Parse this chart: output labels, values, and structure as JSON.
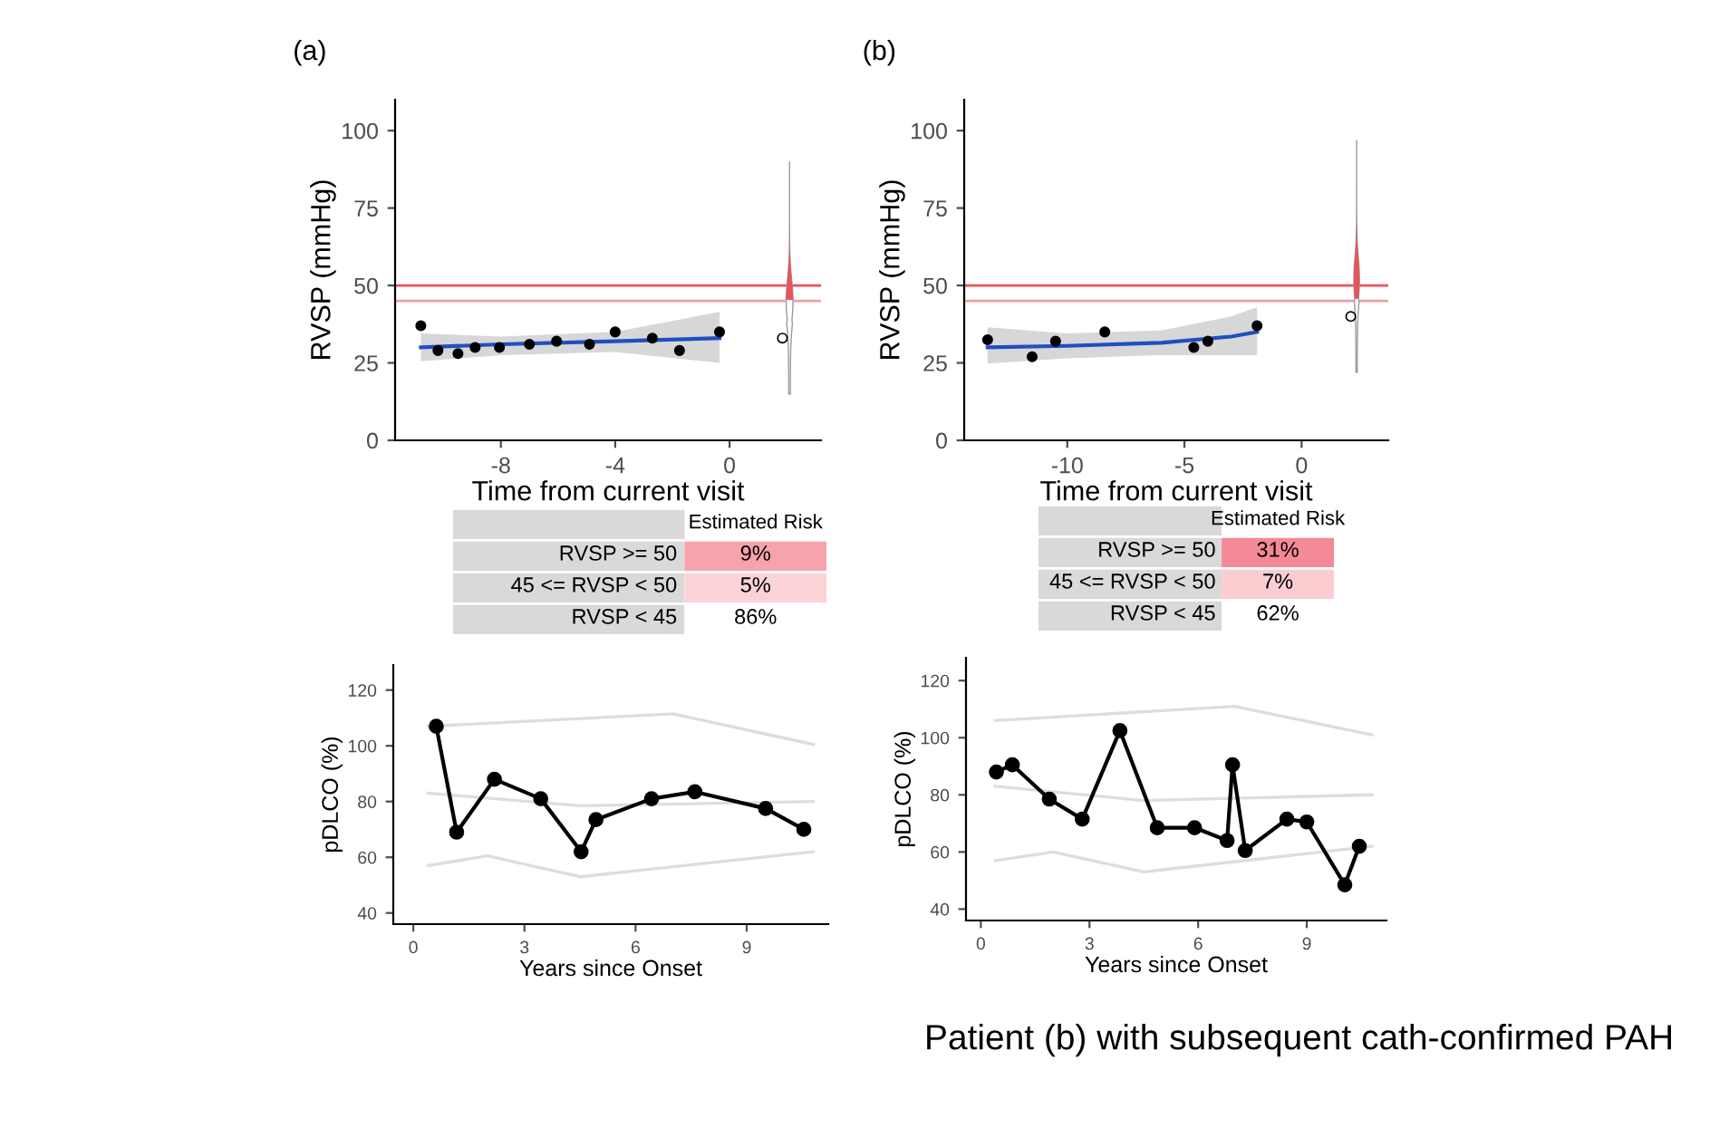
{
  "chart_data": [
    {
      "type": "scatter",
      "title": "(a)",
      "xlabel": "Time from current visit",
      "ylabel": "RVSP (mmHg)",
      "xlim": [
        -11.7,
        3.2
      ],
      "ylim": [
        0,
        110
      ],
      "xticks": [
        -8,
        -4,
        0
      ],
      "yticks": [
        0,
        25,
        50,
        75,
        100
      ],
      "grid": false,
      "legend": false,
      "series": [
        {
          "type": "line",
          "color": "#1f4fbf",
          "x": [
            -10.8,
            -8,
            -4,
            -0.35
          ],
          "values": [
            30,
            31,
            32,
            33
          ],
          "lower": [
            25.5,
            27.5,
            28.5,
            25
          ],
          "upper": [
            34.5,
            33.5,
            35,
            41.5
          ]
        },
        {
          "type": "scatter",
          "marker": "circle",
          "color": "#000000",
          "x": [
            -10.8,
            -10.2,
            -9.5,
            -8.9,
            -8.05,
            -7.0,
            -6.05,
            -4.9,
            -4.0,
            -2.7,
            -1.75,
            -0.35
          ],
          "values": [
            37,
            29,
            28,
            30,
            30,
            31,
            32,
            31,
            35,
            33,
            29,
            35
          ]
        },
        {
          "type": "scatter",
          "marker": "circle",
          "color": "#ffffff",
          "x": [
            1.85
          ],
          "values": [
            33
          ]
        }
      ],
      "ref_lines": [
        {
          "axis": "y",
          "value": 50,
          "color": "#e8535b"
        },
        {
          "axis": "y",
          "value": 45,
          "color": "#f2a0a4"
        }
      ]
    },
    {
      "type": "scatter",
      "title": "(b)",
      "xlabel": "Time from current visit",
      "ylabel": "RVSP (mmHg)",
      "xlim": [
        -14.4,
        3.7
      ],
      "ylim": [
        0,
        110
      ],
      "xticks": [
        -10,
        -5,
        0
      ],
      "yticks": [
        0,
        25,
        50,
        75,
        100
      ],
      "grid": false,
      "legend": false,
      "series": [
        {
          "type": "line",
          "color": "#1f4fbf",
          "x": [
            -13.4,
            -10,
            -6,
            -3,
            -1.9
          ],
          "values": [
            30,
            30.5,
            31.5,
            33.5,
            35
          ],
          "lower": [
            24.8,
            26.5,
            27.5,
            27.5,
            27.5
          ],
          "upper": [
            36.5,
            34.5,
            35.5,
            40,
            43
          ]
        },
        {
          "type": "scatter",
          "marker": "circle",
          "color": "#000000",
          "x": [
            -13.4,
            -11.5,
            -10.5,
            -8.4,
            -4.6,
            -4.0,
            -1.9
          ],
          "values": [
            32.5,
            27,
            32,
            35,
            30,
            32,
            37
          ]
        },
        {
          "type": "scatter",
          "marker": "circle",
          "color": "#ffffff",
          "x": [
            2.1
          ],
          "values": [
            40
          ]
        }
      ],
      "ref_lines": [
        {
          "axis": "y",
          "value": 50,
          "color": "#e8535b"
        },
        {
          "axis": "y",
          "value": 45,
          "color": "#f2a0a4"
        }
      ]
    },
    {
      "type": "other",
      "title": "Estimated Risk",
      "categories": [
        "RVSP >= 50",
        "45 <= RVSP < 50",
        "RVSP < 45"
      ],
      "value_labels": [
        "9%",
        "5%",
        "86%"
      ],
      "colors": [
        "#f7a3ab",
        "#fbd3d6",
        "#ffffff"
      ]
    },
    {
      "type": "other",
      "title": "Estimated Risk",
      "categories": [
        "RVSP >= 50",
        "45 <= RVSP < 50",
        "RVSP < 45"
      ],
      "value_labels": [
        "31%",
        "7%",
        "62%"
      ],
      "colors": [
        "#f48a95",
        "#fbcdd1",
        "#ffffff"
      ]
    },
    {
      "type": "line",
      "xlabel": "Years since Onset",
      "ylabel": "pDLCO (%)",
      "xlim": [
        -0.54,
        11.2
      ],
      "ylim": [
        36,
        129
      ],
      "xticks": [
        0,
        3,
        6,
        9
      ],
      "yticks": [
        40,
        60,
        80,
        100,
        120
      ],
      "grid": false,
      "legend": false,
      "series": [
        {
          "color": "#dcdce4",
          "x": [
            0.4,
            7,
            10.8
          ],
          "values": [
            107,
            111.5,
            100.5
          ]
        },
        {
          "color": "#dcdce4",
          "x": [
            0.4,
            4.5,
            10.8
          ],
          "values": [
            83,
            78.5,
            80
          ]
        },
        {
          "color": "#dcdce4",
          "x": [
            0.4,
            2,
            4.5,
            10.8
          ],
          "values": [
            57,
            60.5,
            53,
            62
          ]
        },
        {
          "color": "#000000",
          "marker": "circle",
          "x": [
            0.62,
            1.17,
            2.19,
            3.44,
            4.53,
            4.93,
            6.43,
            7.6,
            9.51,
            10.54
          ],
          "values": [
            107,
            69,
            88,
            81,
            62,
            73.5,
            81,
            83.5,
            77.5,
            70
          ]
        }
      ]
    },
    {
      "type": "line",
      "xlabel": "Years since Onset",
      "ylabel": "pDLCO (%)",
      "xlim": [
        -0.41,
        11.2
      ],
      "ylim": [
        36,
        128
      ],
      "xticks": [
        0,
        3,
        6,
        9
      ],
      "yticks": [
        40,
        60,
        80,
        100,
        120
      ],
      "grid": false,
      "legend": false,
      "series": [
        {
          "color": "#dcdce4",
          "x": [
            0.4,
            7,
            10.8
          ],
          "values": [
            106,
            111,
            101
          ]
        },
        {
          "color": "#dcdce4",
          "x": [
            0.4,
            4.5,
            10.8
          ],
          "values": [
            83,
            78,
            80
          ]
        },
        {
          "color": "#dcdce4",
          "x": [
            0.4,
            2,
            4.5,
            10.8
          ],
          "values": [
            57,
            60,
            53,
            62
          ]
        },
        {
          "color": "#000000",
          "marker": "circle",
          "x": [
            0.43,
            0.87,
            1.89,
            2.8,
            3.84,
            4.87,
            5.9,
            6.8,
            6.95,
            7.3,
            8.45,
            9.0,
            10.05,
            10.45
          ],
          "values": [
            88,
            90.5,
            78.5,
            71.5,
            102.5,
            68.5,
            68.5,
            64,
            90.5,
            60.5,
            71.5,
            70.5,
            48.5,
            62
          ]
        }
      ],
      "annotations": [
        "Patient (b) with subsequent cath-confirmed PAH"
      ]
    }
  ]
}
